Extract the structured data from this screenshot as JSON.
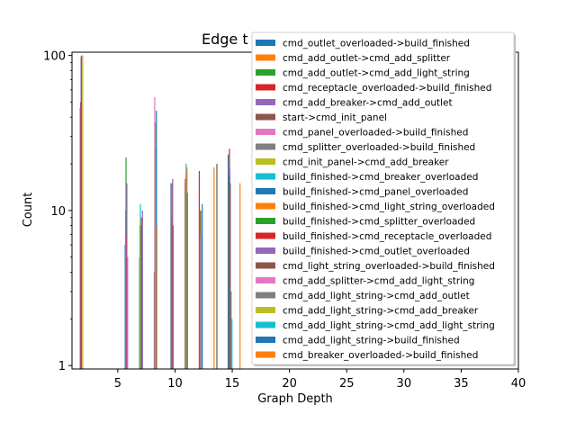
{
  "chart_data": {
    "type": "bar",
    "title": "Edge t",
    "xlabel": "Graph Depth",
    "ylabel": "Count",
    "yscale": "log",
    "ylim": [
      0.95,
      105
    ],
    "xlim": [
      1,
      40
    ],
    "xticks": [
      5,
      10,
      15,
      20,
      25,
      30,
      35,
      40
    ],
    "yticks": [
      {
        "value": 1,
        "label": "1"
      },
      {
        "value": 10,
        "label": "10"
      },
      {
        "value": 100,
        "label": "100"
      }
    ],
    "legend_position": "upper right",
    "series": [
      {
        "name": "cmd_outlet_overloaded->build_finished",
        "color": "#1f77b4",
        "points": [
          [
            6,
            6
          ],
          [
            10,
            15
          ],
          [
            14,
            20
          ],
          [
            15,
            23
          ]
        ]
      },
      {
        "name": "cmd_add_outlet->cmd_add_splitter",
        "color": "#ff7f0e",
        "points": [
          [
            6,
            10
          ],
          [
            10,
            14
          ],
          [
            14,
            20
          ],
          [
            16,
            15
          ]
        ]
      },
      {
        "name": "cmd_add_outlet->cmd_add_light_string",
        "color": "#2ca02c",
        "points": [
          [
            2,
            46
          ],
          [
            6,
            22
          ],
          [
            10,
            9
          ],
          [
            15,
            17
          ]
        ]
      },
      {
        "name": "cmd_receptacle_overloaded->build_finished",
        "color": "#d62728",
        "points": [
          [
            2,
            50
          ],
          [
            6,
            7
          ],
          [
            10,
            15
          ],
          [
            15,
            25
          ]
        ]
      },
      {
        "name": "cmd_add_breaker->cmd_add_outlet",
        "color": "#9467bd",
        "points": [
          [
            2,
            98
          ],
          [
            6,
            15
          ],
          [
            10,
            16
          ],
          [
            15,
            19
          ]
        ]
      },
      {
        "name": "start->cmd_init_panel",
        "color": "#8c564b",
        "points": [
          [
            2,
            100
          ],
          [
            6,
            5
          ],
          [
            10,
            8
          ],
          [
            15,
            15
          ]
        ]
      },
      {
        "name": "cmd_panel_overloaded->build_finished",
        "color": "#e377c2",
        "points": [
          [
            6,
            5
          ],
          [
            11,
            16
          ]
        ]
      },
      {
        "name": "cmd_splitter_overloaded->build_finished",
        "color": "#7f7f7f",
        "points": [
          [
            7,
            5
          ],
          [
            11,
            15
          ],
          [
            15,
            3
          ]
        ]
      },
      {
        "name": "cmd_init_panel->cmd_add_breaker",
        "color": "#bcbd22",
        "points": [
          [
            2,
            100
          ],
          [
            7,
            8
          ],
          [
            11,
            16
          ]
        ]
      },
      {
        "name": "build_finished->cmd_breaker_overloaded",
        "color": "#17becf",
        "points": [
          [
            7,
            11
          ],
          [
            11,
            20
          ],
          [
            15,
            2
          ]
        ]
      },
      {
        "name": "build_finished->cmd_panel_overloaded",
        "color": "#1f77b4",
        "points": [
          [
            7,
            8
          ],
          [
            11,
            18
          ]
        ]
      },
      {
        "name": "build_finished->cmd_light_string_overloaded",
        "color": "#ff7f0e",
        "points": [
          [
            7,
            9
          ],
          [
            11,
            19
          ]
        ]
      },
      {
        "name": "build_finished->cmd_splitter_overloaded",
        "color": "#2ca02c",
        "points": [
          [
            7,
            8
          ],
          [
            11,
            13
          ]
        ]
      },
      {
        "name": "build_finished->cmd_receptacle_overloaded",
        "color": "#d62728",
        "points": [
          [
            7,
            9
          ],
          [
            12,
            18
          ]
        ]
      },
      {
        "name": "build_finished->cmd_outlet_overloaded",
        "color": "#9467bd",
        "points": [
          [
            7,
            10
          ],
          [
            12,
            10
          ]
        ]
      },
      {
        "name": "cmd_light_string_overloaded->build_finished",
        "color": "#8c564b",
        "points": [
          [
            8,
            4
          ],
          [
            12,
            10
          ]
        ]
      },
      {
        "name": "cmd_add_splitter->cmd_add_light_string",
        "color": "#e377c2",
        "points": [
          [
            8,
            54
          ],
          [
            12,
            7
          ]
        ]
      },
      {
        "name": "cmd_add_light_string->cmd_add_outlet",
        "color": "#7f7f7f",
        "points": [
          [
            8,
            37
          ],
          [
            12,
            9
          ]
        ]
      },
      {
        "name": "cmd_add_light_string->cmd_add_breaker",
        "color": "#bcbd22",
        "points": [
          [
            8,
            36
          ],
          [
            12,
            10
          ]
        ]
      },
      {
        "name": "cmd_add_light_string->cmd_add_light_string",
        "color": "#17becf",
        "points": [
          [
            8,
            25
          ],
          [
            12,
            7
          ]
        ]
      },
      {
        "name": "cmd_add_light_string->build_finished",
        "color": "#1f77b4",
        "points": [
          [
            8,
            44
          ],
          [
            12,
            11
          ]
        ]
      },
      {
        "name": "cmd_breaker_overloaded->build_finished",
        "color": "#ff7f0e",
        "points": [
          [
            8,
            8
          ],
          [
            13,
            19
          ]
        ]
      }
    ]
  }
}
